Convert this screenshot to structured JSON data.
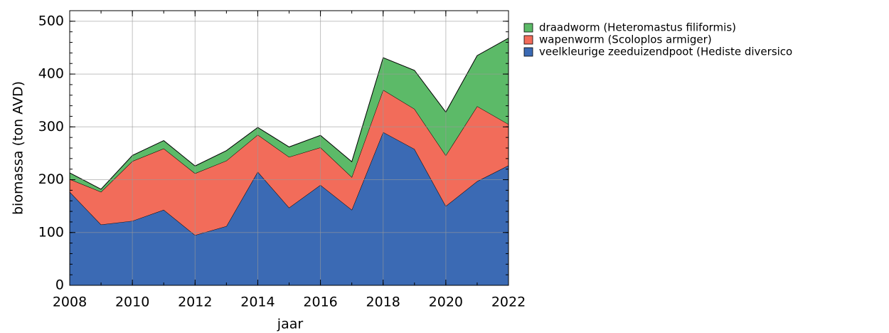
{
  "chart_data": {
    "type": "stacked_area",
    "xlabel": "jaar",
    "ylabel": "biomassa (ton AVD)",
    "x": [
      2008,
      2009,
      2010,
      2011,
      2012,
      2013,
      2014,
      2015,
      2016,
      2017,
      2018,
      2019,
      2020,
      2021,
      2022
    ],
    "series": [
      {
        "name": "veelkleurige zeeduizendpoot (Hediste diversico",
        "color": "#3b6ab4",
        "values": [
          177,
          115,
          122,
          143,
          95,
          112,
          215,
          147,
          190,
          143,
          290,
          258,
          150,
          197,
          227
        ]
      },
      {
        "name": "wapenworm (Scoloplos armiger)",
        "color": "#f26c5a",
        "values": [
          24,
          62,
          113,
          116,
          117,
          124,
          70,
          96,
          71,
          62,
          80,
          76,
          96,
          142,
          78
        ]
      },
      {
        "name": "draadworm (Heteromastus filiformis)",
        "color": "#5cba68",
        "values": [
          12,
          5,
          11,
          15,
          14,
          19,
          14,
          19,
          23,
          29,
          61,
          73,
          82,
          96,
          163
        ]
      }
    ],
    "xlim": [
      2008,
      2022
    ],
    "xticks": [
      2008,
      2010,
      2012,
      2014,
      2016,
      2018,
      2020,
      2022
    ],
    "ylim": [
      0,
      520
    ],
    "yticks": [
      0,
      100,
      200,
      300,
      400,
      500
    ],
    "grid": true,
    "legend": "outside right"
  }
}
